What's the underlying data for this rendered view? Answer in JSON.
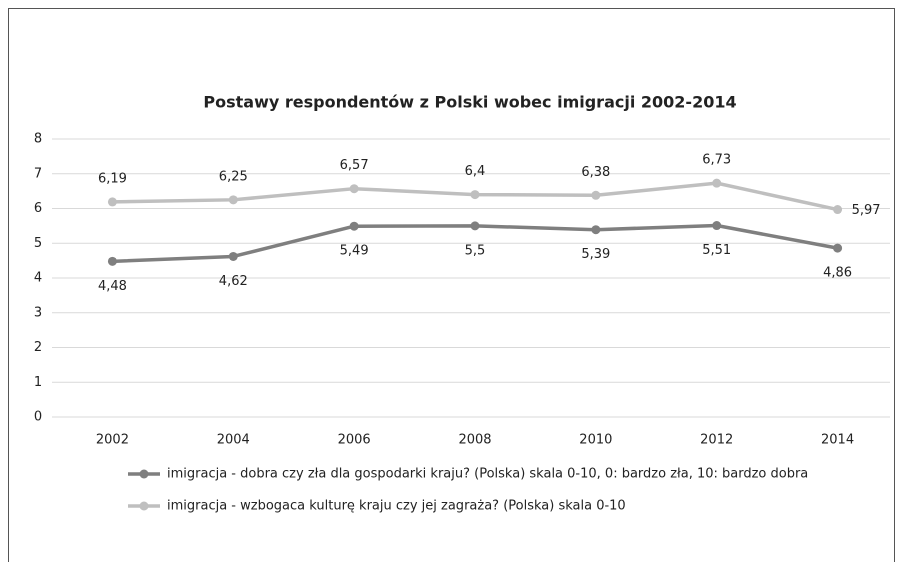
{
  "chart_data": {
    "type": "line",
    "title": "Postawy respondentów z Polski wobec imigracji 2002-2014",
    "categories": [
      "2002",
      "2004",
      "2006",
      "2008",
      "2010",
      "2012",
      "2014"
    ],
    "series": [
      {
        "name": "imigracja - dobra czy zła dla gospodarki kraju? (Polska) skala 0-10, 0: bardzo zła, 10: bardzo dobra",
        "color": "#7f7f7f",
        "values": [
          4.48,
          4.62,
          5.49,
          5.5,
          5.39,
          5.51,
          4.86
        ],
        "value_labels": [
          "4,48",
          "4,62",
          "5,49",
          "5,5",
          "5,39",
          "5,51",
          "4,86"
        ]
      },
      {
        "name": "imigracja - wzbogaca kulturę kraju czy jej zagraża? (Polska) skala 0-10",
        "color": "#bfbfbf",
        "values": [
          6.19,
          6.25,
          6.57,
          6.4,
          6.38,
          6.73,
          5.97
        ],
        "value_labels": [
          "6,19",
          "6,25",
          "6,57",
          "6,4",
          "6,38",
          "6,73",
          "5,97"
        ]
      }
    ],
    "ylim": [
      0,
      8
    ],
    "yticks": [
      0,
      1,
      2,
      3,
      4,
      5,
      6,
      7,
      8
    ],
    "grid": true,
    "legend": "bottom"
  }
}
